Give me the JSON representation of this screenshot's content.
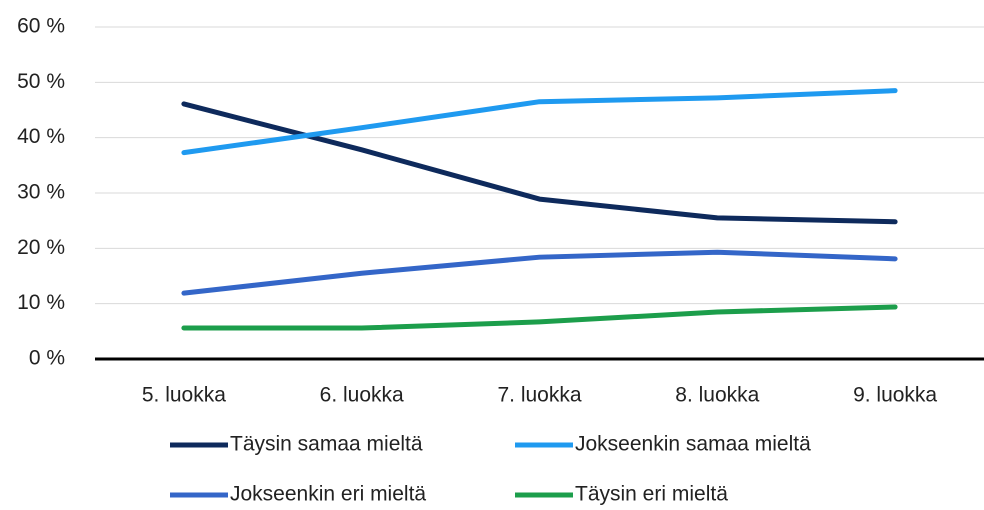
{
  "chart_data": {
    "type": "line",
    "categories": [
      "5. luokka",
      "6. luokka",
      "7. luokka",
      "8. luokka",
      "9. luokka"
    ],
    "series": [
      {
        "name": "Täysin samaa mieltä",
        "color": "#0e2a5c",
        "values": [
          46.1,
          37.8,
          28.9,
          25.5,
          24.8
        ]
      },
      {
        "name": "Jokseenkin samaa mieltä",
        "color": "#1f9af0",
        "values": [
          37.3,
          41.8,
          46.5,
          47.2,
          48.5
        ]
      },
      {
        "name": "Jokseenkin eri mieltä",
        "color": "#3466c8",
        "values": [
          11.9,
          15.5,
          18.4,
          19.3,
          18.1
        ]
      },
      {
        "name": "Täysin eri mieltä",
        "color": "#1c9e4b",
        "values": [
          5.6,
          5.6,
          6.7,
          8.5,
          9.4
        ]
      }
    ],
    "ylim": [
      0,
      60
    ],
    "yticks": [
      {
        "value": 0,
        "label": "0 %"
      },
      {
        "value": 10,
        "label": "10 %"
      },
      {
        "value": 20,
        "label": "20 %"
      },
      {
        "value": 30,
        "label": "30 %"
      },
      {
        "value": 40,
        "label": "40 %"
      },
      {
        "value": 50,
        "label": "50 %"
      },
      {
        "value": 60,
        "label": "60 %"
      }
    ],
    "grid": true
  }
}
